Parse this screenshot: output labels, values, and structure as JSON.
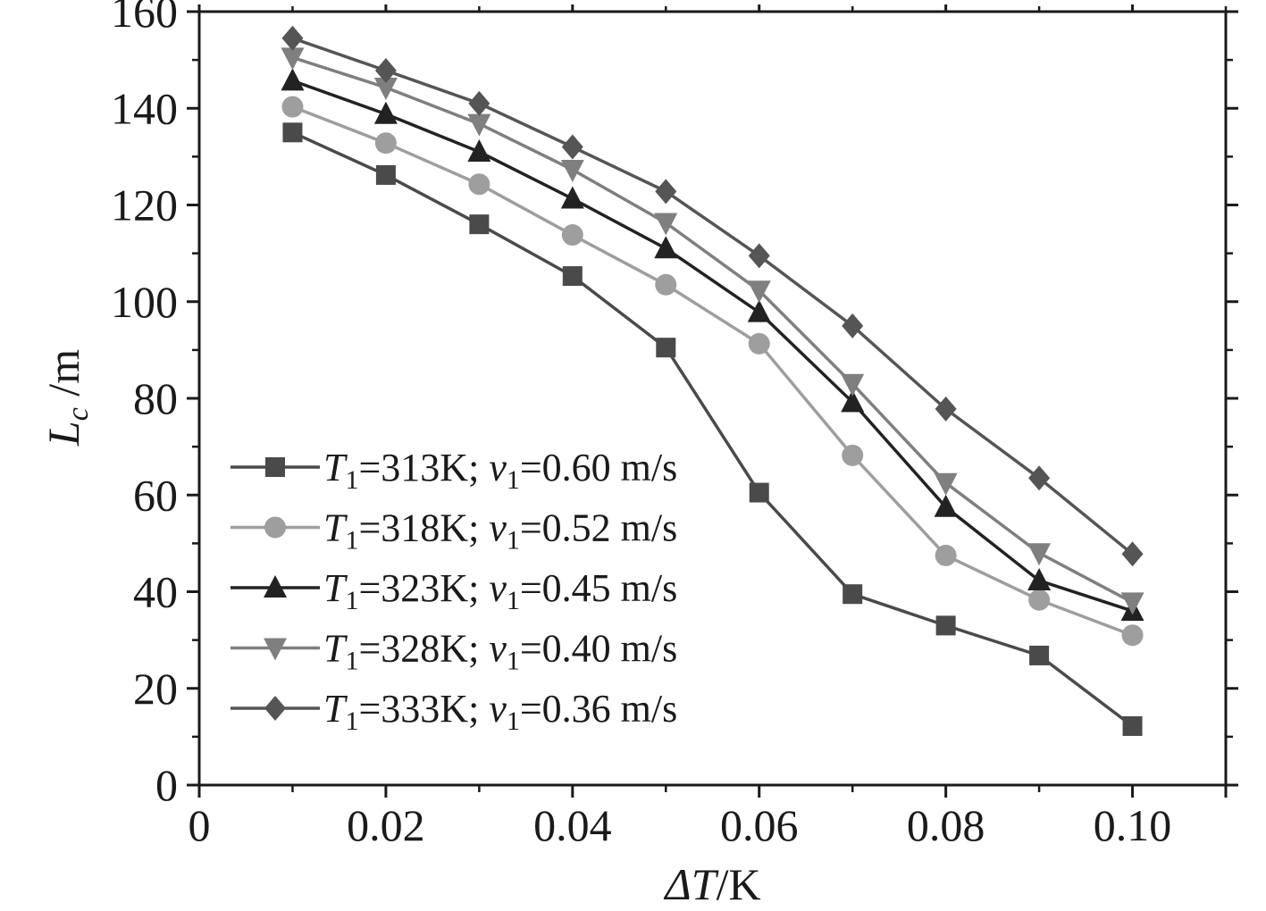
{
  "chart_data": {
    "type": "line",
    "title": "",
    "xlabel": {
      "symbol": "ΔT",
      "unit": "/K"
    },
    "ylabel": {
      "symbol": "L",
      "subscript": "c",
      "unit": " /m"
    },
    "xlim": [
      0,
      0.11
    ],
    "ylim": [
      0,
      160
    ],
    "xticks": [
      0,
      0.02,
      0.04,
      0.06,
      0.08,
      0.1
    ],
    "xtick_labels": [
      "0",
      "0.02",
      "0.04",
      "0.06",
      "0.08",
      "0.10"
    ],
    "yticks": [
      0,
      20,
      40,
      60,
      80,
      100,
      120,
      140,
      160
    ],
    "ytick_labels": [
      "0",
      "20",
      "40",
      "60",
      "80",
      "100",
      "120",
      "140",
      "160"
    ],
    "grid": false,
    "legend_position": "lower-left",
    "x": [
      0.01,
      0.02,
      0.03,
      0.04,
      0.05,
      0.06,
      0.07,
      0.08,
      0.09,
      0.1
    ],
    "series": [
      {
        "name": "T1=313K; v1=0.60 m/s",
        "T": "T",
        "T_sub": "1",
        "T_val": "=313K; ",
        "v": "v",
        "v_sub": "1",
        "v_val": "=0.60 m/s",
        "marker": "square",
        "color": "#4a4a4a",
        "values": [
          135,
          126.2,
          116,
          105.3,
          90.5,
          60.5,
          39.5,
          33,
          26.8,
          12.2
        ]
      },
      {
        "name": "T1=318K; v1=0.52 m/s",
        "T": "T",
        "T_sub": "1",
        "T_val": "=318K; ",
        "v": "v",
        "v_sub": "1",
        "v_val": "=0.52 m/s",
        "marker": "circle",
        "color": "#9e9e9e",
        "values": [
          140.3,
          132.8,
          124.3,
          113.8,
          103.5,
          91.3,
          68.2,
          47.5,
          38.3,
          31
        ]
      },
      {
        "name": "T1=323K; v1=0.45 m/s",
        "T": "T",
        "T_sub": "1",
        "T_val": "=323K; ",
        "v": "v",
        "v_sub": "1",
        "v_val": "=0.45 m/s",
        "marker": "triangle-up",
        "color": "#222222",
        "values": [
          145.7,
          138.8,
          131,
          121.3,
          111,
          97.8,
          79.2,
          57.5,
          42.3,
          36
        ]
      },
      {
        "name": "T1=328K; v1=0.40 m/s",
        "T": "T",
        "T_sub": "1",
        "T_val": "=328K; ",
        "v": "v",
        "v_sub": "1",
        "v_val": "=0.40 m/s",
        "marker": "triangle-down",
        "color": "#7f7f7f",
        "values": [
          150.5,
          144.3,
          136.8,
          127.3,
          116.3,
          102.3,
          83,
          62.5,
          48,
          37.8
        ]
      },
      {
        "name": "T1=333K; v1=0.36 m/s",
        "T": "T",
        "T_sub": "1",
        "T_val": "=333K; ",
        "v": "v",
        "v_sub": "1",
        "v_val": "=0.36 m/s",
        "marker": "diamond",
        "color": "#555555",
        "values": [
          154.5,
          147.8,
          141,
          132,
          122.8,
          109.5,
          95,
          77.8,
          63.5,
          47.8
        ]
      }
    ]
  }
}
